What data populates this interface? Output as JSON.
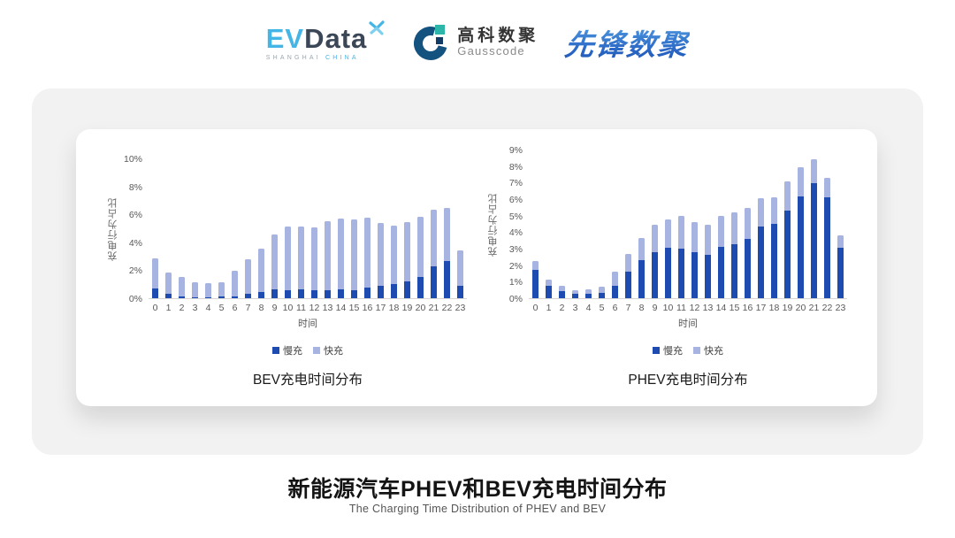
{
  "header": {
    "evdata": {
      "part1": "EV",
      "part2": "Data",
      "sub_left": "SHANGHAI ",
      "sub_right": "CHINA"
    },
    "gausscode": {
      "name_cn": "高科数聚",
      "name_en": "Gausscode"
    },
    "pioneer": {
      "name": "先锋数聚"
    }
  },
  "footer": {
    "title": "新能源汽车PHEV和BEV充电时间分布",
    "subtitle": "The Charging Time Distribution of PHEV and BEV"
  },
  "colors": {
    "slow_charge": "#1d4bb0",
    "fast_charge": "#a7b3e0",
    "evdata_blue": "#45b5e6",
    "evdata_dark": "#3b4757",
    "gauss_navy": "#14527f",
    "gauss_teal": "#2cb6aa",
    "pioneer_blue": "#2e6fc9",
    "band_gray": "#f2f2f2"
  },
  "chart_data": [
    {
      "type": "bar",
      "stacked": true,
      "title": "BEV充电时间分布",
      "xlabel": "时间",
      "ylabel": "充电行为占比",
      "ylim": [
        0,
        10
      ],
      "grid": false,
      "legend_position": "bottom",
      "ytick_labels": [
        "10%",
        "8%",
        "6%",
        "4%",
        "2%",
        "0%"
      ],
      "ytick_values": [
        10,
        8,
        6,
        4,
        2,
        0
      ],
      "categories": [
        "0",
        "1",
        "2",
        "3",
        "4",
        "5",
        "6",
        "7",
        "8",
        "9",
        "10",
        "11",
        "12",
        "13",
        "14",
        "15",
        "16",
        "17",
        "18",
        "19",
        "20",
        "21",
        "22",
        "23"
      ],
      "series": [
        {
          "name": "慢充",
          "color": "#1d4bb0",
          "values": [
            0.7,
            0.3,
            0.15,
            0.08,
            0.06,
            0.1,
            0.15,
            0.3,
            0.45,
            0.65,
            0.6,
            0.65,
            0.55,
            0.6,
            0.65,
            0.6,
            0.75,
            0.9,
            1.0,
            1.2,
            1.55,
            2.3,
            2.65,
            0.9
          ]
        },
        {
          "name": "快充",
          "color": "#a7b3e0",
          "values": [
            2.15,
            1.55,
            1.35,
            1.05,
            1.0,
            1.05,
            1.8,
            2.5,
            3.1,
            3.95,
            4.55,
            4.5,
            4.55,
            4.95,
            5.1,
            5.1,
            5.05,
            4.5,
            4.2,
            4.3,
            4.3,
            4.05,
            3.85,
            2.55
          ]
        }
      ]
    },
    {
      "type": "bar",
      "stacked": true,
      "title": "PHEV充电时间分布",
      "xlabel": "时间",
      "ylabel": "充电行为占比",
      "ylim": [
        0,
        9
      ],
      "grid": false,
      "legend_position": "bottom",
      "ytick_labels": [
        "9%",
        "8%",
        "7%",
        "6%",
        "5%",
        "4%",
        "3%",
        "2%",
        "1%",
        "0%"
      ],
      "ytick_values": [
        9,
        8,
        7,
        6,
        5,
        4,
        3,
        2,
        1,
        0
      ],
      "categories": [
        "0",
        "1",
        "2",
        "3",
        "4",
        "5",
        "6",
        "7",
        "8",
        "9",
        "10",
        "11",
        "12",
        "13",
        "14",
        "15",
        "16",
        "17",
        "18",
        "19",
        "20",
        "21",
        "22",
        "23"
      ],
      "series": [
        {
          "name": "慢充",
          "color": "#1d4bb0",
          "values": [
            1.75,
            0.75,
            0.45,
            0.25,
            0.25,
            0.3,
            0.75,
            1.6,
            2.3,
            2.8,
            3.05,
            3.0,
            2.8,
            2.65,
            3.1,
            3.3,
            3.6,
            4.35,
            4.55,
            5.35,
            6.2,
            7.0,
            6.15,
            3.05
          ]
        },
        {
          "name": "快充",
          "color": "#a7b3e0",
          "values": [
            0.5,
            0.4,
            0.3,
            0.25,
            0.3,
            0.4,
            0.85,
            1.1,
            1.35,
            1.7,
            1.75,
            2.0,
            1.85,
            1.8,
            1.9,
            1.95,
            1.9,
            1.75,
            1.6,
            1.75,
            1.8,
            1.45,
            1.2,
            0.8
          ]
        }
      ]
    }
  ]
}
